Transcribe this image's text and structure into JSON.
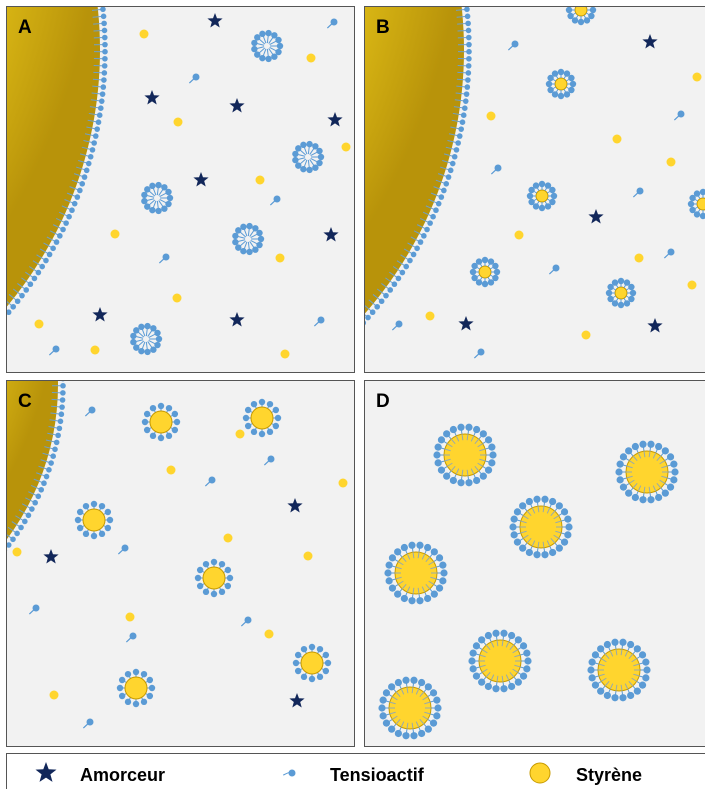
{
  "panels": [
    {
      "label": "A"
    },
    {
      "label": "B"
    },
    {
      "label": "C"
    },
    {
      "label": "D"
    }
  ],
  "legend": [
    {
      "label": "Amorceur"
    },
    {
      "label": "Tensioactif"
    },
    {
      "label": "Styrène"
    }
  ]
}
